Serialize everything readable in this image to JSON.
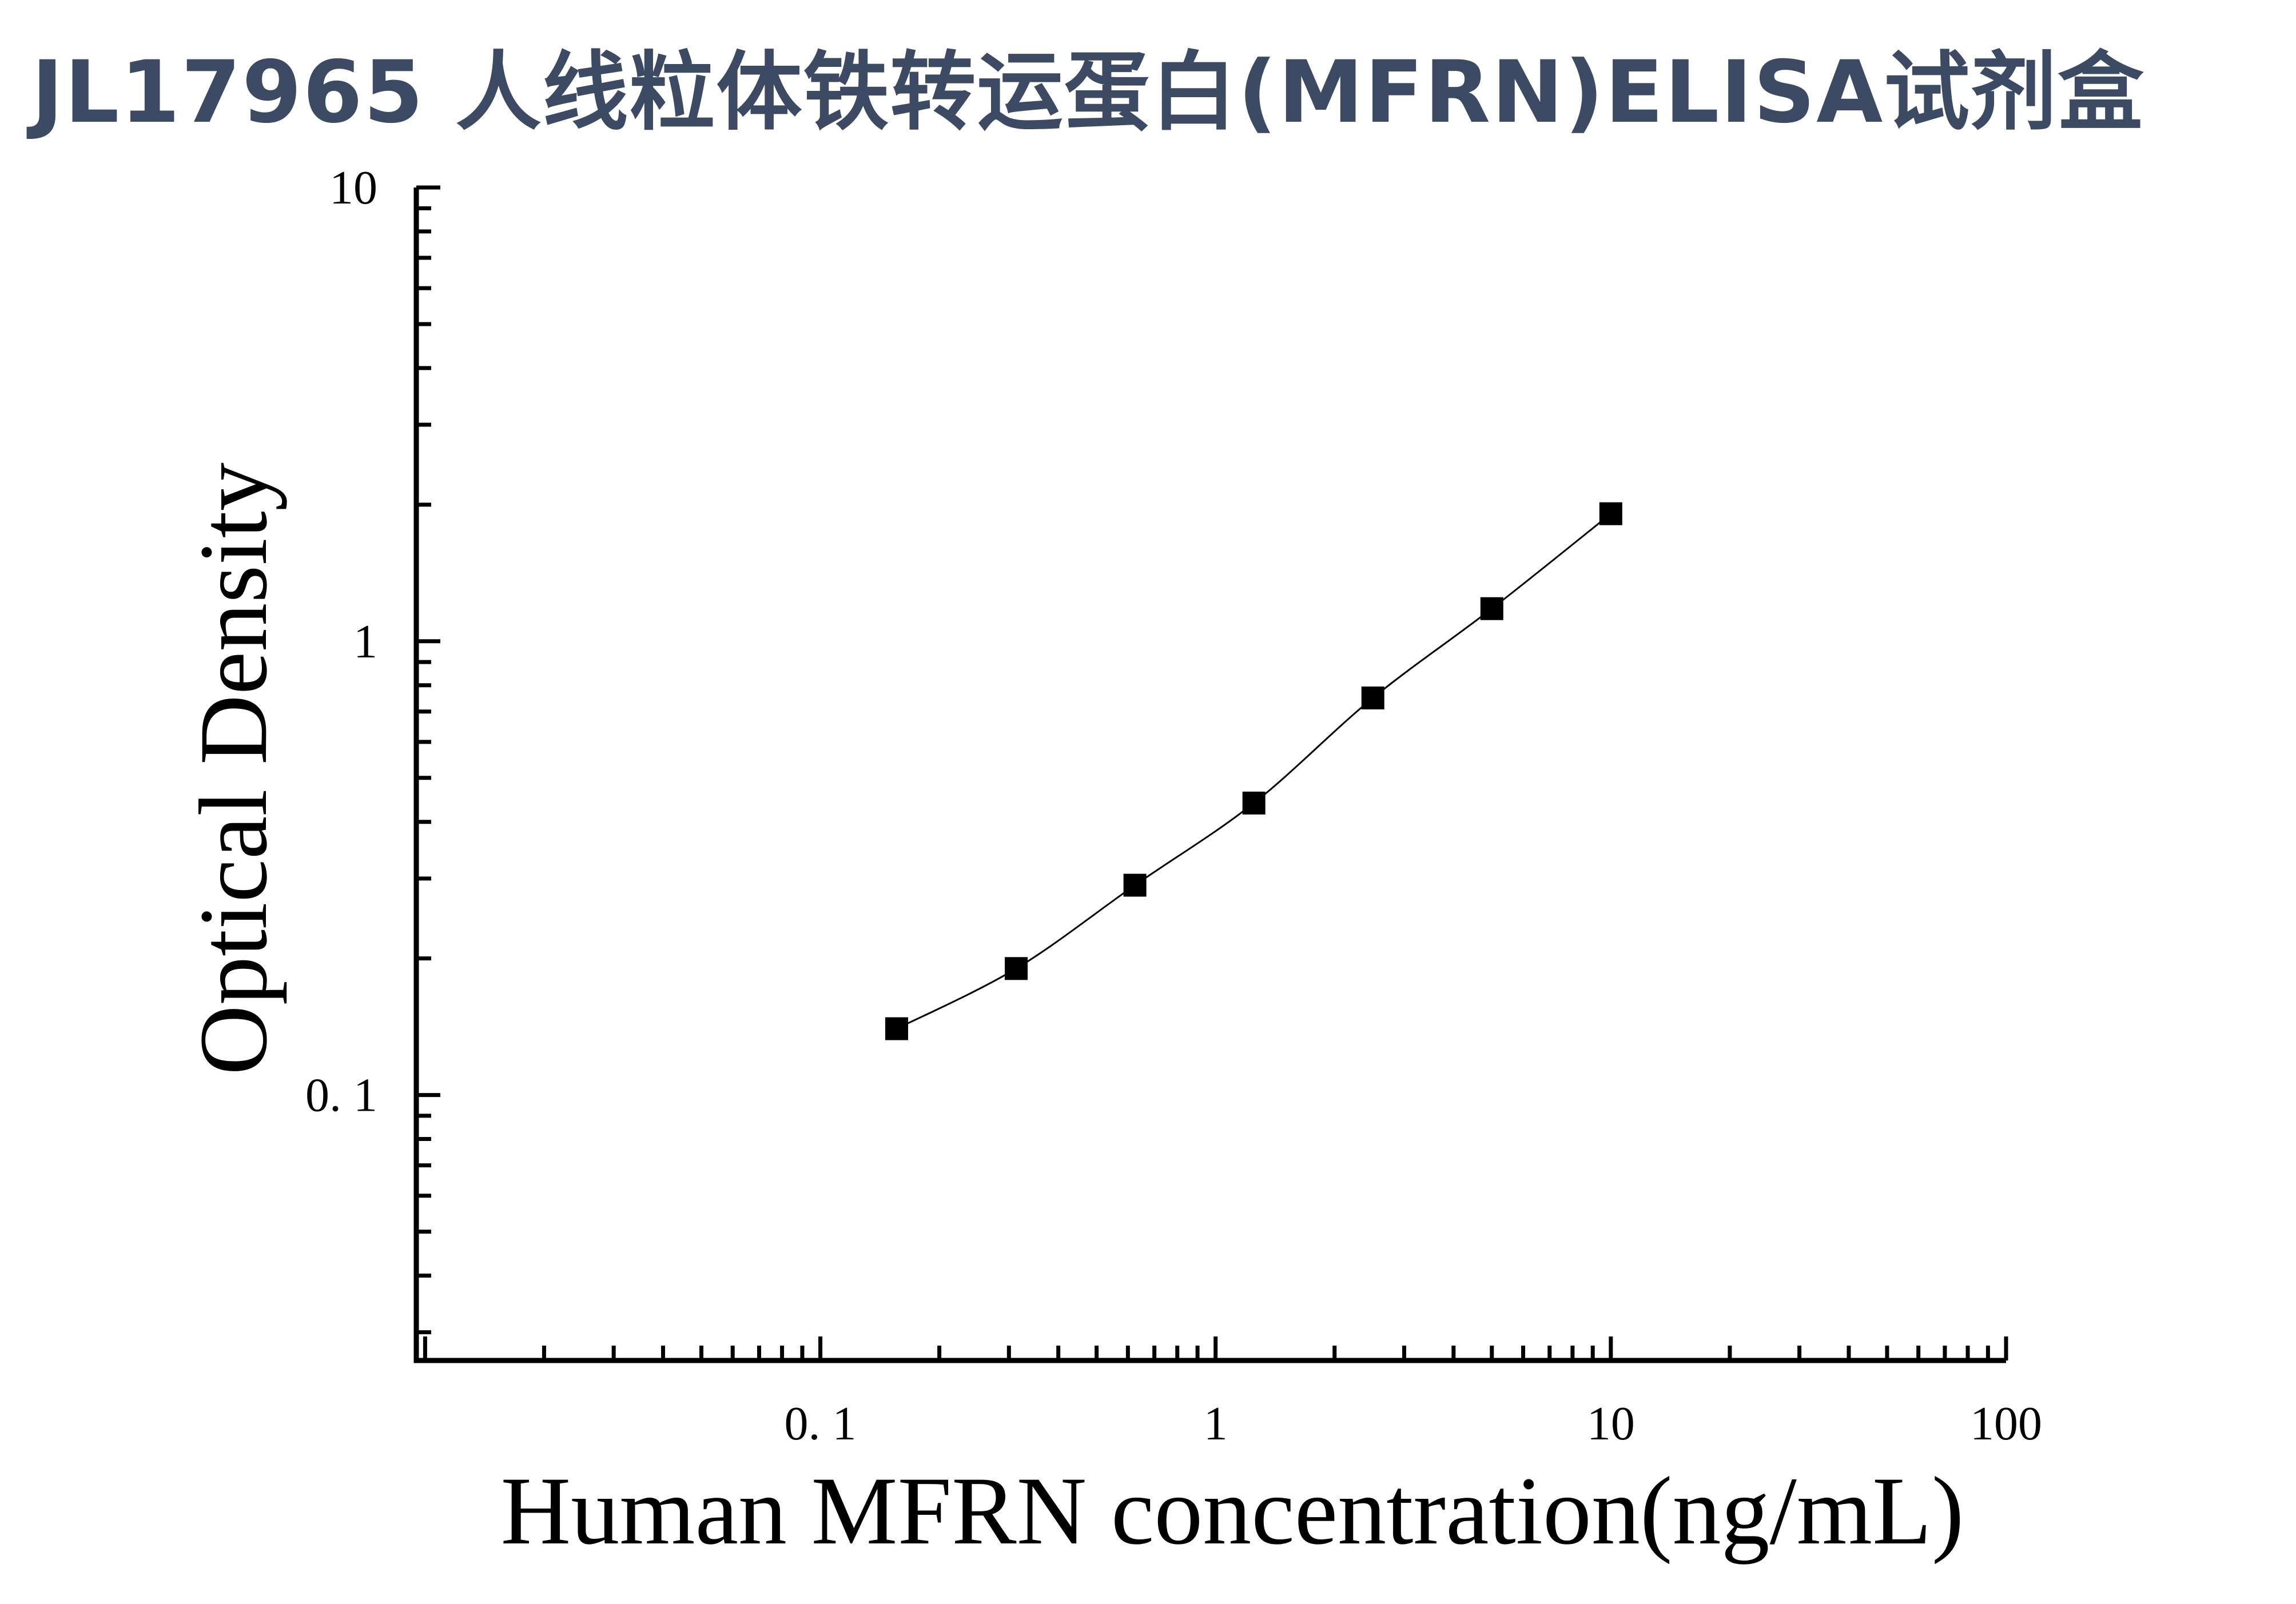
{
  "title": "JL17965 人线粒体铁转运蛋白(MFRN)ELISA试剂盒",
  "chart_data": {
    "type": "scatter",
    "xlabel": "Human MFRN concentration(ng/mL)",
    "ylabel": "Optical Density",
    "x_scale": "log",
    "y_scale": "log",
    "xlim": [
      0.0095,
      100
    ],
    "ylim": [
      0.026,
      10
    ],
    "x_ticks": [
      {
        "value": 0.1,
        "label": "0. 1"
      },
      {
        "value": 1,
        "label": "1"
      },
      {
        "value": 10,
        "label": "10"
      },
      {
        "value": 100,
        "label": "100"
      }
    ],
    "y_ticks": [
      {
        "value": 0.1,
        "label": "0. 1"
      },
      {
        "value": 1,
        "label": "1"
      },
      {
        "value": 10,
        "label": "10"
      }
    ],
    "grid": false,
    "series": [
      {
        "marker": "square",
        "color": "#000000",
        "fit_line": true,
        "x": [
          0.156,
          0.313,
          0.625,
          1.25,
          2.5,
          5,
          10
        ],
        "y": [
          0.14,
          0.19,
          0.29,
          0.44,
          0.75,
          1.18,
          1.91
        ]
      }
    ]
  }
}
